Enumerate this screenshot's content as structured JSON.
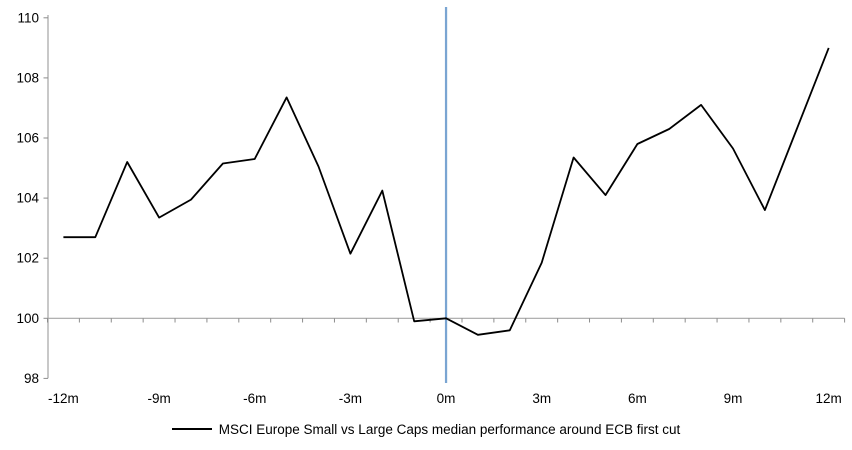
{
  "chart_data": {
    "type": "line",
    "title": "",
    "months": [
      -12,
      -11,
      -10,
      -9,
      -8,
      -7,
      -6,
      -5,
      -4,
      -3,
      -2,
      -1,
      0,
      1,
      2,
      3,
      4,
      5,
      6,
      7,
      8,
      9,
      10,
      11,
      12
    ],
    "series": [
      {
        "name": "MSCI Europe Small vs Large Caps median performance around ECB first cut",
        "color": "#000000",
        "values": [
          102.7,
          102.7,
          105.2,
          103.35,
          103.95,
          105.15,
          105.3,
          107.35,
          105.05,
          102.15,
          104.25,
          99.9,
          100.0,
          99.45,
          99.6,
          101.85,
          105.35,
          104.1,
          105.8,
          106.3,
          107.1,
          105.65,
          103.6,
          106.3,
          109.0
        ]
      }
    ],
    "x_tick_positions": [
      -12,
      -9,
      -6,
      -3,
      0,
      3,
      6,
      9,
      12
    ],
    "x_tick_labels": [
      "-12m",
      "-9m",
      "-6m",
      "-3m",
      "0m",
      "3m",
      "6m",
      "9m",
      "12m"
    ],
    "y_ticks": [
      98,
      100,
      102,
      104,
      106,
      108,
      110
    ],
    "ylim": [
      98,
      110
    ],
    "baseline": 100,
    "event_line": {
      "x": 0,
      "color": "#7AA5D2"
    },
    "grid": "baseline-only",
    "legend_position": "bottom-center",
    "colors": {
      "axis": "#A6A6A6",
      "tick": "#8C8C8C",
      "text": "#000000",
      "background": "#FFFFFF"
    }
  }
}
